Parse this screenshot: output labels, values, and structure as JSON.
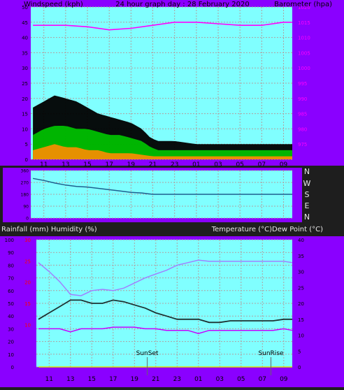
{
  "colors": {
    "frame": "#8a00ff",
    "plot": "#80ffff",
    "grid": "#b0a0a0",
    "axis_text": "#000000",
    "baro_text": "#ff00ff",
    "rain_text": "#ff0000",
    "dark_bg": "#1e1e1e",
    "light_text": "#e8e8e8"
  },
  "top_panel": {
    "left_label": "Windspeed (kph)",
    "center_label": "24 hour graph day : 28 February 2020",
    "right_label": "Barometer (hpa)"
  },
  "middle_panel": {
    "direction_labels": [
      "N",
      "W",
      "S",
      "E",
      "N"
    ]
  },
  "bottom_panel": {
    "left_label": "Rainfall (mm)  Humidity (%)",
    "right_label": "Temperature (°C)Dew Point (°C)",
    "sunset_label": "SunSet",
    "sunrise_label": "SunRise"
  },
  "chart_data": [
    {
      "type": "line",
      "title": "24 hour graph day : 28 February 2020",
      "x": [
        "11",
        "13",
        "15",
        "17",
        "19",
        "21",
        "23",
        "01",
        "03",
        "05",
        "07",
        "09"
      ],
      "x_range_hours": [
        9.8,
        33.8
      ],
      "ylabel_left": "Windspeed (kph)",
      "ylabel_right": "Barometer (hpa)",
      "ylim_left": [
        0,
        50
      ],
      "yticks_left": [
        0,
        5,
        10,
        15,
        20,
        25,
        30,
        35,
        40,
        45,
        50
      ],
      "ylim_right": [
        970,
        1020
      ],
      "yticks_right": [
        975,
        980,
        985,
        990,
        995,
        1000,
        1005,
        1010,
        1015,
        1020
      ],
      "grid": true,
      "series": [
        {
          "name": "",
          "role": "wind_gust",
          "color": "#000000",
          "points": [
            [
              10,
              17
            ],
            [
              11,
              19
            ],
            [
              12,
              21
            ],
            [
              13,
              20
            ],
            [
              14,
              19
            ],
            [
              15,
              17
            ],
            [
              16,
              15
            ],
            [
              17,
              14
            ],
            [
              18,
              13
            ],
            [
              19,
              12
            ],
            [
              20,
              10
            ],
            [
              20.8,
              7
            ],
            [
              21.5,
              6
            ],
            [
              23,
              6
            ],
            [
              25,
              5
            ],
            [
              27,
              5
            ],
            [
              29,
              5
            ],
            [
              31,
              5
            ],
            [
              33,
              5
            ],
            [
              33.8,
              5
            ]
          ]
        },
        {
          "name": "",
          "role": "wind_average",
          "color": "#00c800",
          "points": [
            [
              10,
              8
            ],
            [
              11,
              10
            ],
            [
              12,
              11
            ],
            [
              13,
              11
            ],
            [
              14,
              10
            ],
            [
              15,
              10
            ],
            [
              16,
              9
            ],
            [
              17,
              8
            ],
            [
              18,
              8
            ],
            [
              19,
              7
            ],
            [
              20,
              6
            ],
            [
              20.8,
              4
            ],
            [
              21.5,
              3
            ],
            [
              23,
              3
            ],
            [
              25,
              3
            ],
            [
              27,
              3
            ],
            [
              29,
              3
            ],
            [
              31,
              3
            ],
            [
              33,
              3
            ],
            [
              33.8,
              3
            ]
          ]
        },
        {
          "name": "",
          "role": "wind_speed",
          "color": "#ff8c00",
          "points": [
            [
              10,
              3
            ],
            [
              11,
              4
            ],
            [
              12,
              5
            ],
            [
              13,
              4
            ],
            [
              14,
              4
            ],
            [
              15,
              3
            ],
            [
              16,
              3
            ],
            [
              17,
              2
            ],
            [
              18,
              2
            ],
            [
              19,
              2
            ],
            [
              20,
              1.5
            ],
            [
              21,
              1
            ],
            [
              23,
              1
            ],
            [
              25,
              1
            ],
            [
              27,
              1
            ],
            [
              29,
              1
            ],
            [
              31,
              1
            ],
            [
              33,
              1
            ],
            [
              33.8,
              1
            ]
          ]
        },
        {
          "name": "",
          "role": "barometer",
          "axis": "right",
          "color": "#ff00ff",
          "points": [
            [
              10,
              1014
            ],
            [
              13,
              1014
            ],
            [
              15,
              1013.5
            ],
            [
              17,
              1012.5
            ],
            [
              19,
              1013
            ],
            [
              21,
              1014
            ],
            [
              23,
              1015
            ],
            [
              25,
              1015
            ],
            [
              27,
              1014.5
            ],
            [
              29,
              1014
            ],
            [
              31,
              1014
            ],
            [
              33,
              1015
            ],
            [
              33.8,
              1015
            ]
          ]
        }
      ]
    },
    {
      "type": "line",
      "x_range_hours": [
        9.8,
        33.8
      ],
      "ylabel": "Wind direction",
      "yticks": [
        0,
        90,
        180,
        270,
        360
      ],
      "ylim": [
        0,
        360
      ],
      "series": [
        {
          "name": "",
          "role": "wind_direction",
          "color": "#1f5f8f",
          "points": [
            [
              10,
              300
            ],
            [
              11,
              285
            ],
            [
              12,
              265
            ],
            [
              13,
              250
            ],
            [
              14,
              240
            ],
            [
              15,
              235
            ],
            [
              16,
              225
            ],
            [
              17,
              215
            ],
            [
              18,
              205
            ],
            [
              19,
              195
            ],
            [
              20,
              190
            ],
            [
              20.5,
              185
            ],
            [
              21,
              180
            ],
            [
              25,
              180
            ],
            [
              29,
              180
            ],
            [
              33.8,
              180
            ]
          ]
        }
      ]
    },
    {
      "type": "line",
      "sunset_hour": 20.2,
      "sunrise_hour": 31.8,
      "x": [
        "11",
        "13",
        "15",
        "17",
        "19",
        "21",
        "23",
        "01",
        "03",
        "05",
        "07",
        "09"
      ],
      "x_range_hours": [
        9.8,
        33.8
      ],
      "ylabel_left": "Rainfall (mm)  Humidity (%)",
      "ylabel_right": "Temperature (°C)Dew Point (°C)",
      "ylim_humidity": [
        0,
        100
      ],
      "yticks_humidity": [
        0,
        10,
        20,
        30,
        40,
        50,
        60,
        70,
        80,
        90,
        100
      ],
      "ylim_rain": [
        0,
        30
      ],
      "yticks_rain": [
        10,
        15,
        20,
        25,
        30
      ],
      "ylim_right": [
        0,
        40
      ],
      "yticks_right": [
        0,
        5,
        10,
        15,
        20,
        25,
        30,
        35,
        40
      ],
      "grid": true,
      "series": [
        {
          "name": "",
          "role": "humidity",
          "axis": "left",
          "color": "#a080ff",
          "points": [
            [
              10,
              82
            ],
            [
              11,
              75
            ],
            [
              12,
              67
            ],
            [
              12.5,
              62
            ],
            [
              13,
              57
            ],
            [
              14,
              56
            ],
            [
              15,
              60
            ],
            [
              16,
              61
            ],
            [
              17,
              60
            ],
            [
              18,
              62
            ],
            [
              19,
              66
            ],
            [
              20,
              70
            ],
            [
              21,
              73
            ],
            [
              22,
              76
            ],
            [
              23,
              80
            ],
            [
              24,
              82
            ],
            [
              25,
              84
            ],
            [
              26,
              83
            ],
            [
              27,
              83
            ],
            [
              29,
              83
            ],
            [
              31,
              83
            ],
            [
              33,
              83
            ],
            [
              33.8,
              82
            ]
          ]
        },
        {
          "name": "",
          "role": "temperature",
          "axis": "right",
          "color": "#1e3232",
          "points": [
            [
              10,
              15
            ],
            [
              11,
              17
            ],
            [
              12,
              19
            ],
            [
              13,
              21
            ],
            [
              14,
              21
            ],
            [
              15,
              20
            ],
            [
              16,
              20
            ],
            [
              17,
              21
            ],
            [
              18,
              20.5
            ],
            [
              19,
              19.5
            ],
            [
              20,
              18.5
            ],
            [
              21,
              17
            ],
            [
              22,
              16
            ],
            [
              23,
              15
            ],
            [
              24,
              15
            ],
            [
              25,
              15
            ],
            [
              26,
              14
            ],
            [
              27,
              14
            ],
            [
              28,
              14.5
            ],
            [
              29,
              14.5
            ],
            [
              30,
              14.5
            ],
            [
              31,
              14.5
            ],
            [
              32,
              14.5
            ],
            [
              33,
              15
            ],
            [
              33.8,
              15
            ]
          ]
        },
        {
          "name": "",
          "role": "dew_point",
          "axis": "right",
          "color": "#c800ff",
          "points": [
            [
              10,
              12
            ],
            [
              11,
              12
            ],
            [
              12,
              12
            ],
            [
              13,
              11
            ],
            [
              14,
              12
            ],
            [
              15,
              12
            ],
            [
              16,
              12
            ],
            [
              17,
              12.5
            ],
            [
              18,
              12.5
            ],
            [
              19,
              12.5
            ],
            [
              20,
              12
            ],
            [
              21,
              12
            ],
            [
              22,
              11.5
            ],
            [
              23,
              11.5
            ],
            [
              24,
              11.5
            ],
            [
              25,
              10.5
            ],
            [
              26,
              11.5
            ],
            [
              27,
              11.5
            ],
            [
              28,
              11.5
            ],
            [
              29,
              11.5
            ],
            [
              30,
              11.5
            ],
            [
              31,
              11.5
            ],
            [
              32,
              11.5
            ],
            [
              33,
              12
            ],
            [
              33.8,
              11.5
            ]
          ]
        },
        {
          "name": "",
          "role": "rainfall",
          "axis": "rain",
          "color": "#e0e000",
          "points": [
            [
              10,
              0
            ],
            [
              33.8,
              0
            ]
          ]
        }
      ]
    }
  ]
}
